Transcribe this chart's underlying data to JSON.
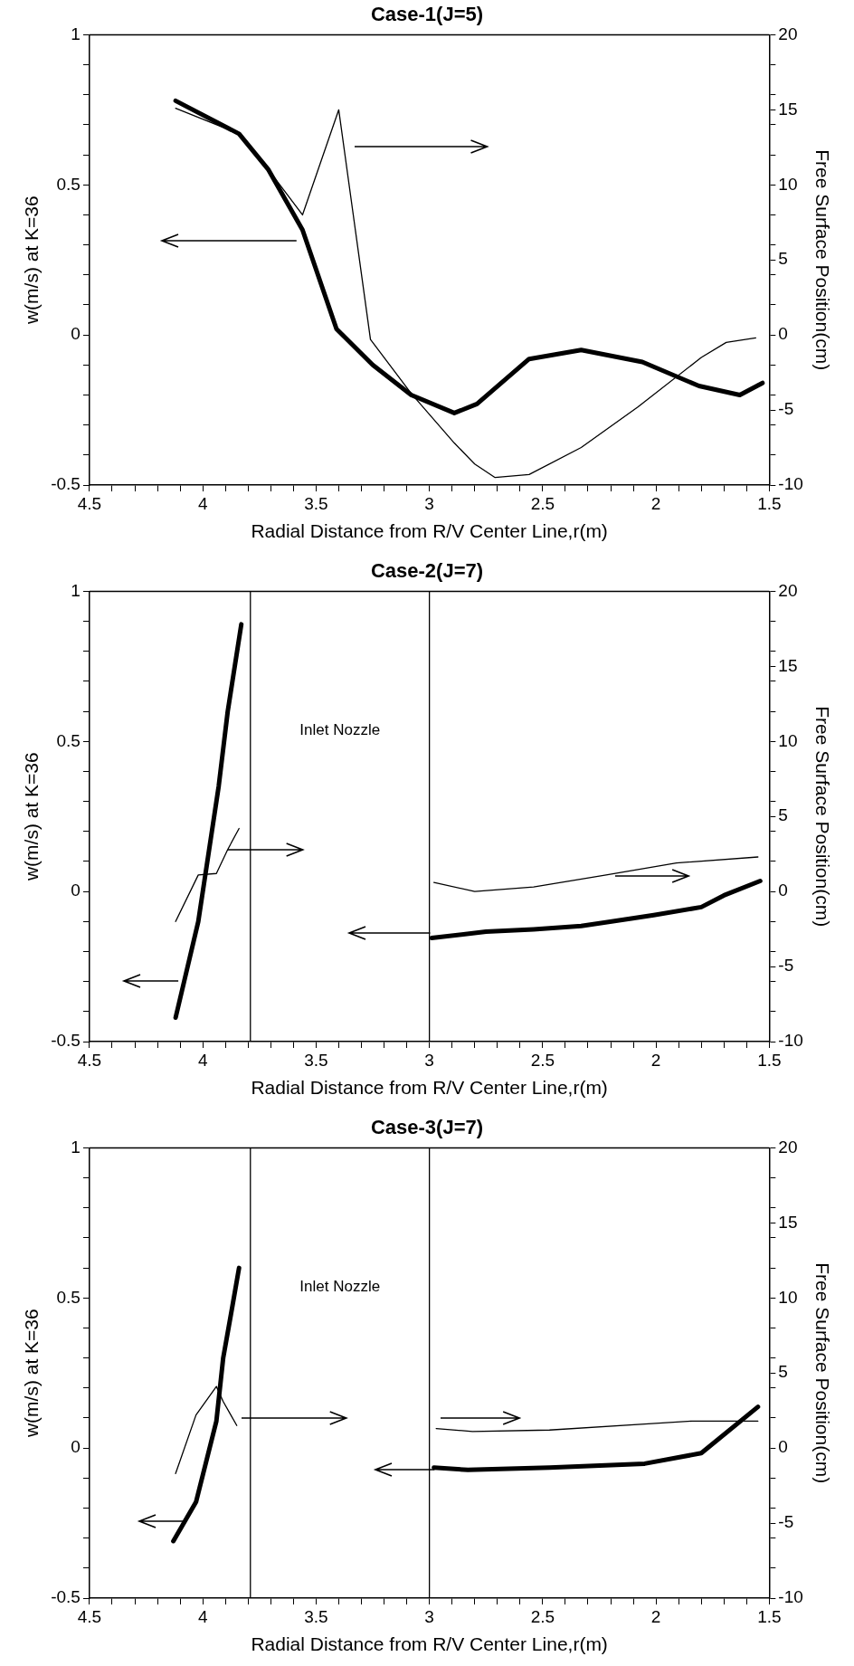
{
  "chart_data": [
    {
      "type": "line",
      "title": "Case-1(J=5)",
      "xlabel": "Radial Distance from R/V Center Line,r(m)",
      "ylabel": "w(m/s) at K=36",
      "y2label": "Free Surface Position(cm)",
      "xlim": [
        4.5,
        1.5
      ],
      "ylim": [
        -0.5,
        1
      ],
      "y2lim": [
        -10,
        20
      ],
      "xticks": [
        4.5,
        {
          "value": 4.4,
          "label": null
        },
        {
          "value": 4.3,
          "label": null
        },
        {
          "value": 4.2,
          "label": null
        },
        {
          "value": 4.1,
          "label": null
        },
        4,
        {
          "value": 3.9,
          "label": null
        },
        {
          "value": 3.8,
          "label": null
        },
        {
          "value": 3.7,
          "label": null
        },
        {
          "value": 3.6,
          "label": null
        },
        3.5,
        {
          "value": 3.4,
          "label": null
        },
        {
          "value": 3.3,
          "label": null
        },
        {
          "value": 3.2,
          "label": null
        },
        {
          "value": 3.1,
          "label": null
        },
        3,
        {
          "value": 2.9,
          "label": null
        },
        {
          "value": 2.8,
          "label": null
        },
        {
          "value": 2.7,
          "label": null
        },
        {
          "value": 2.6,
          "label": null
        },
        2.5,
        {
          "value": 2.4,
          "label": null
        },
        {
          "value": 2.3,
          "label": null
        },
        {
          "value": 2.2,
          "label": null
        },
        {
          "value": 2.1,
          "label": null
        },
        2,
        {
          "value": 1.9,
          "label": null
        },
        {
          "value": 1.8,
          "label": null
        },
        {
          "value": 1.7,
          "label": null
        },
        {
          "value": 1.6,
          "label": null
        },
        1.5
      ],
      "yticks": [
        -0.5,
        {
          "value": -0.4,
          "label": null
        },
        {
          "value": -0.3,
          "label": null
        },
        {
          "value": -0.2,
          "label": null
        },
        {
          "value": -0.1,
          "label": null
        },
        0,
        {
          "value": 0.1,
          "label": null
        },
        {
          "value": 0.2,
          "label": null
        },
        {
          "value": 0.3,
          "label": null
        },
        {
          "value": 0.4,
          "label": null
        },
        0.5,
        {
          "value": 0.6,
          "label": null
        },
        {
          "value": 0.7,
          "label": null
        },
        {
          "value": 0.8,
          "label": null
        },
        {
          "value": 0.9,
          "label": null
        },
        1
      ],
      "y2ticks": [
        -10,
        {
          "value": -8,
          "label": null
        },
        {
          "value": -6,
          "label": null
        },
        {
          "value": -4,
          "label": null
        },
        {
          "value": -2,
          "label": null
        },
        -5,
        0,
        {
          "value": 2,
          "label": null
        },
        {
          "value": 4,
          "label": null
        },
        5,
        {
          "value": 6,
          "label": null
        },
        {
          "value": 8,
          "label": null
        },
        10,
        {
          "value": 12,
          "label": null
        },
        {
          "value": 14,
          "label": null
        },
        15,
        {
          "value": 16,
          "label": null
        },
        {
          "value": 18,
          "label": null
        },
        20
      ],
      "marker": "none",
      "legend": false,
      "grid": false,
      "series": [
        {
          "color": "#000000",
          "axis": "y",
          "x": [
            4.12,
            3.84,
            3.71,
            3.56,
            3.41,
            3.25,
            3.08,
            2.89,
            2.79,
            2.56,
            2.33,
            2.06,
            1.81,
            1.63,
            1.53
          ],
          "values": [
            0.78,
            0.67,
            0.55,
            0.35,
            0.02,
            -0.1,
            -0.2,
            -0.26,
            -0.23,
            -0.08,
            -0.05,
            -0.09,
            -0.17,
            -0.2,
            -0.16
          ]
        },
        {
          "color": "#000000",
          "axis": "y2",
          "x": [
            4.12,
            3.84,
            3.71,
            3.56,
            3.4,
            3.26,
            3.08,
            2.89,
            2.8,
            2.71,
            2.56,
            2.33,
            2.08,
            1.8,
            1.69,
            1.56
          ],
          "values": [
            15.1,
            13.4,
            11.0,
            8.0,
            15.0,
            -0.3,
            -3.9,
            -7.2,
            -8.6,
            -9.5,
            -9.3,
            -7.5,
            -4.8,
            -1.5,
            -0.5,
            -0.2
          ]
        }
      ]
    },
    {
      "type": "line",
      "title": "Case-2(J=7)",
      "xlabel": "Radial Distance from R/V Center Line,r(m)",
      "ylabel": "w(m/s) at K=36",
      "y2label": "Free Surface Position(cm)",
      "xlim": [
        4.5,
        1.5
      ],
      "ylim": [
        -0.5,
        1
      ],
      "y2lim": [
        -10,
        20
      ],
      "xticks": [
        4.5,
        {
          "value": 4.4,
          "label": null
        },
        {
          "value": 4.3,
          "label": null
        },
        {
          "value": 4.2,
          "label": null
        },
        {
          "value": 4.1,
          "label": null
        },
        4,
        {
          "value": 3.9,
          "label": null
        },
        {
          "value": 3.8,
          "label": null
        },
        {
          "value": 3.7,
          "label": null
        },
        {
          "value": 3.6,
          "label": null
        },
        3.5,
        {
          "value": 3.4,
          "label": null
        },
        {
          "value": 3.3,
          "label": null
        },
        {
          "value": 3.2,
          "label": null
        },
        {
          "value": 3.1,
          "label": null
        },
        3,
        {
          "value": 2.9,
          "label": null
        },
        {
          "value": 2.8,
          "label": null
        },
        {
          "value": 2.7,
          "label": null
        },
        {
          "value": 2.6,
          "label": null
        },
        2.5,
        {
          "value": 2.4,
          "label": null
        },
        {
          "value": 2.3,
          "label": null
        },
        {
          "value": 2.2,
          "label": null
        },
        {
          "value": 2.1,
          "label": null
        },
        2,
        {
          "value": 1.9,
          "label": null
        },
        {
          "value": 1.8,
          "label": null
        },
        {
          "value": 1.7,
          "label": null
        },
        {
          "value": 1.6,
          "label": null
        },
        1.5
      ],
      "yticks": [
        -0.5,
        {
          "value": -0.4,
          "label": null
        },
        {
          "value": -0.3,
          "label": null
        },
        {
          "value": -0.2,
          "label": null
        },
        {
          "value": -0.1,
          "label": null
        },
        0,
        {
          "value": 0.1,
          "label": null
        },
        {
          "value": 0.2,
          "label": null
        },
        {
          "value": 0.3,
          "label": null
        },
        {
          "value": 0.4,
          "label": null
        },
        0.5,
        {
          "value": 0.6,
          "label": null
        },
        {
          "value": 0.7,
          "label": null
        },
        {
          "value": 0.8,
          "label": null
        },
        {
          "value": 0.9,
          "label": null
        },
        1
      ],
      "y2ticks": [
        -10,
        {
          "value": -8,
          "label": null
        },
        {
          "value": -6,
          "label": null
        },
        {
          "value": -4,
          "label": null
        },
        {
          "value": -2,
          "label": null
        },
        -5,
        0,
        {
          "value": 2,
          "label": null
        },
        {
          "value": 4,
          "label": null
        },
        5,
        {
          "value": 6,
          "label": null
        },
        {
          "value": 8,
          "label": null
        },
        10,
        {
          "value": 12,
          "label": null
        },
        {
          "value": 14,
          "label": null
        },
        15,
        {
          "value": 16,
          "label": null
        },
        {
          "value": 18,
          "label": null
        },
        20
      ],
      "marker": "none",
      "legend": false,
      "grid": false,
      "ref_lines": [
        {
          "axis": "x",
          "value": 3.79
        },
        {
          "axis": "x",
          "value": 3.0
        }
      ],
      "annotations": [
        "Inlet Nozzle"
      ],
      "series": [
        {
          "color": "#000000",
          "axis": "y",
          "x": [
            4.12,
            4.02,
            3.93,
            3.89,
            3.83
          ],
          "values": [
            -0.42,
            -0.1,
            0.35,
            0.6,
            0.89
          ]
        },
        {
          "color": "#000000",
          "axis": "y",
          "x": [
            2.99,
            2.75,
            2.54,
            2.33,
            2.01,
            1.8,
            1.7,
            1.54
          ],
          "values": [
            -0.155,
            -0.134,
            -0.126,
            -0.115,
            -0.079,
            -0.052,
            -0.013,
            0.035
          ]
        },
        {
          "color": "#000000",
          "axis": "y2",
          "x": [
            4.12,
            4.02,
            3.94,
            3.89,
            3.84
          ],
          "values": [
            -2.0,
            1.1,
            1.2,
            2.8,
            4.2
          ]
        },
        {
          "color": "#000000",
          "axis": "y2",
          "x": [
            2.98,
            2.8,
            2.54,
            2.22,
            1.91,
            1.55
          ],
          "values": [
            0.6,
            0.0,
            0.3,
            1.1,
            1.9,
            2.3
          ]
        }
      ]
    },
    {
      "type": "line",
      "title": "Case-3(J=7)",
      "xlabel": "Radial Distance from R/V Center Line,r(m)",
      "ylabel": "w(m/s) at K=36",
      "y2label": "Free Surface Position(cm)",
      "xlim": [
        4.5,
        1.5
      ],
      "ylim": [
        -0.5,
        1
      ],
      "y2lim": [
        -10,
        20
      ],
      "xticks": [
        4.5,
        {
          "value": 4.4,
          "label": null
        },
        {
          "value": 4.3,
          "label": null
        },
        {
          "value": 4.2,
          "label": null
        },
        {
          "value": 4.1,
          "label": null
        },
        4,
        {
          "value": 3.9,
          "label": null
        },
        {
          "value": 3.8,
          "label": null
        },
        {
          "value": 3.7,
          "label": null
        },
        {
          "value": 3.6,
          "label": null
        },
        3.5,
        {
          "value": 3.4,
          "label": null
        },
        {
          "value": 3.3,
          "label": null
        },
        {
          "value": 3.2,
          "label": null
        },
        {
          "value": 3.1,
          "label": null
        },
        3,
        {
          "value": 2.9,
          "label": null
        },
        {
          "value": 2.8,
          "label": null
        },
        {
          "value": 2.7,
          "label": null
        },
        {
          "value": 2.6,
          "label": null
        },
        2.5,
        {
          "value": 2.4,
          "label": null
        },
        {
          "value": 2.3,
          "label": null
        },
        {
          "value": 2.2,
          "label": null
        },
        {
          "value": 2.1,
          "label": null
        },
        2,
        {
          "value": 1.9,
          "label": null
        },
        {
          "value": 1.8,
          "label": null
        },
        {
          "value": 1.7,
          "label": null
        },
        {
          "value": 1.6,
          "label": null
        },
        1.5
      ],
      "yticks": [
        -0.5,
        {
          "value": -0.4,
          "label": null
        },
        {
          "value": -0.3,
          "label": null
        },
        {
          "value": -0.2,
          "label": null
        },
        {
          "value": -0.1,
          "label": null
        },
        0,
        {
          "value": 0.1,
          "label": null
        },
        {
          "value": 0.2,
          "label": null
        },
        {
          "value": 0.3,
          "label": null
        },
        {
          "value": 0.4,
          "label": null
        },
        0.5,
        {
          "value": 0.6,
          "label": null
        },
        {
          "value": 0.7,
          "label": null
        },
        {
          "value": 0.8,
          "label": null
        },
        {
          "value": 0.9,
          "label": null
        },
        1
      ],
      "y2ticks": [
        -10,
        {
          "value": -8,
          "label": null
        },
        {
          "value": -6,
          "label": null
        },
        {
          "value": -4,
          "label": null
        },
        {
          "value": -2,
          "label": null
        },
        -5,
        0,
        {
          "value": 2,
          "label": null
        },
        {
          "value": 4,
          "label": null
        },
        5,
        {
          "value": 6,
          "label": null
        },
        {
          "value": 8,
          "label": null
        },
        10,
        {
          "value": 12,
          "label": null
        },
        {
          "value": 14,
          "label": null
        },
        15,
        {
          "value": 16,
          "label": null
        },
        {
          "value": 18,
          "label": null
        },
        20
      ],
      "marker": "none",
      "legend": false,
      "grid": false,
      "ref_lines": [
        {
          "axis": "x",
          "value": 3.79
        },
        {
          "axis": "x",
          "value": 3.0
        }
      ],
      "annotations": [
        "Inlet Nozzle"
      ],
      "series": [
        {
          "color": "#000000",
          "axis": "y",
          "x": [
            4.13,
            4.03,
            3.94,
            3.91,
            3.87,
            3.84
          ],
          "values": [
            -0.31,
            -0.18,
            0.09,
            0.3,
            0.47,
            0.6
          ]
        },
        {
          "color": "#000000",
          "axis": "y",
          "x": [
            2.98,
            2.83,
            2.47,
            2.05,
            1.8,
            1.55
          ],
          "values": [
            -0.065,
            -0.073,
            -0.065,
            -0.052,
            -0.017,
            0.137
          ]
        },
        {
          "color": "#000000",
          "axis": "y2",
          "x": [
            4.12,
            4.03,
            3.94,
            3.91,
            3.85
          ],
          "values": [
            -1.7,
            2.2,
            4.1,
            3.1,
            1.5
          ]
        },
        {
          "color": "#000000",
          "axis": "y2",
          "x": [
            2.97,
            2.81,
            2.47,
            2.05,
            1.84,
            1.55
          ],
          "values": [
            1.3,
            1.1,
            1.2,
            1.6,
            1.8,
            1.8
          ]
        }
      ]
    }
  ]
}
